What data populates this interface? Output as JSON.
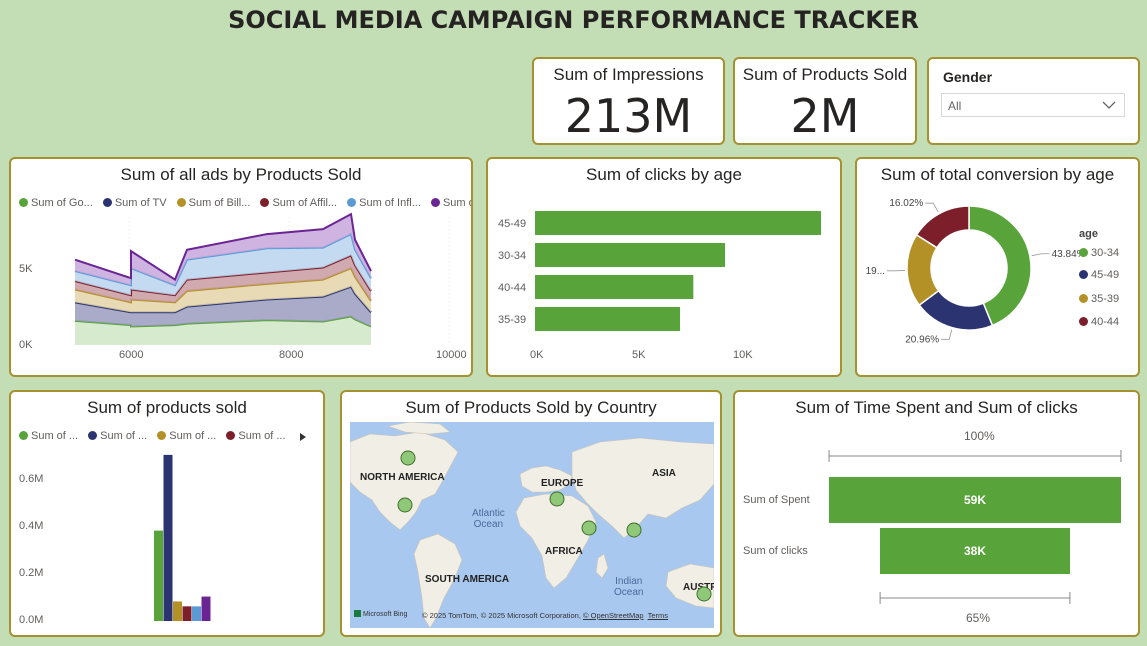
{
  "title": "SOCIAL MEDIA CAMPAIGN PERFORMANCE TRACKER",
  "kpis": [
    {
      "label": "Sum of Impressions",
      "value": "213M"
    },
    {
      "label": "Sum of Products Sold",
      "value": "2M"
    }
  ],
  "slicer": {
    "title": "Gender",
    "value": "All"
  },
  "colors": {
    "green": "#58a33a",
    "navy": "#2b3470",
    "gold": "#b39127",
    "maroon": "#7d1f2a",
    "blue": "#5b9bd5",
    "purple": "#6b2493",
    "border": "#a5912f"
  },
  "area_chart": {
    "title": "Sum of all ads by Products Sold",
    "legend": [
      "Sum of Go...",
      "Sum of TV",
      "Sum of Bill...",
      "Sum of Affil...",
      "Sum of Infl...",
      "Sum of S..."
    ],
    "x_ticks": [
      "6000",
      "8000",
      "10000"
    ],
    "y_ticks": [
      "5K",
      "0K"
    ],
    "chart_data": {
      "type": "area",
      "x": [
        5300,
        6000,
        6000,
        6550,
        6700,
        7700,
        8400,
        8750,
        8800,
        9000
      ],
      "xlim": [
        5000,
        10000
      ],
      "ylim": [
        0,
        9000
      ],
      "series": [
        {
          "values": [
            1700,
            1400,
            1300,
            1400,
            1500,
            1750,
            1650,
            2000,
            1800,
            1300
          ]
        },
        {
          "values": [
            1300,
            900,
            1000,
            900,
            1200,
            1450,
            1750,
            2100,
            1800,
            1000
          ]
        },
        {
          "values": [
            900,
            700,
            900,
            700,
            1100,
            1100,
            1200,
            1300,
            1200,
            800
          ]
        },
        {
          "values": [
            600,
            500,
            700,
            500,
            800,
            800,
            850,
            900,
            800,
            700
          ]
        },
        {
          "values": [
            700,
            700,
            1500,
            700,
            1400,
            1700,
            1400,
            1500,
            1100,
            900
          ]
        },
        {
          "values": [
            800,
            500,
            1200,
            400,
            700,
            1000,
            1300,
            1400,
            700,
            500
          ]
        }
      ]
    }
  },
  "clicks_chart": {
    "title": "Sum of clicks by age",
    "x_ticks": [
      "0K",
      "5K",
      "10K"
    ],
    "chart_data": {
      "type": "bar",
      "categories": [
        "45-49",
        "30-34",
        "40-44",
        "35-39"
      ],
      "values": [
        14000,
        9300,
        7750,
        7100
      ],
      "xlim": [
        0,
        14000
      ]
    }
  },
  "donut_chart": {
    "title": "Sum of total conversion by age",
    "legend_title": "age",
    "chart_data": {
      "type": "pie",
      "categories": [
        "30-34",
        "45-49",
        "35-39",
        "40-44"
      ],
      "values": [
        43.84,
        20.96,
        19.18,
        16.02
      ],
      "labels": [
        "43.84%",
        "20.96%",
        "19...",
        "16.02%"
      ]
    }
  },
  "products_chart": {
    "title": "Sum of products sold",
    "legend": [
      "Sum of ...",
      "Sum of ...",
      "Sum of ...",
      "Sum of ..."
    ],
    "y_ticks": [
      "0.6M",
      "0.4M",
      "0.2M",
      "0.0M"
    ],
    "chart_data": {
      "type": "bar",
      "values": [
        0.37,
        0.68,
        0.08,
        0.06,
        0.06,
        0.1
      ],
      "ylim": [
        0,
        0.7
      ]
    }
  },
  "map": {
    "title": "Sum of Products Sold by Country",
    "labels": {
      "na": "NORTH AMERICA",
      "eu": "EUROPE",
      "asia": "ASIA",
      "africa": "AFRICA",
      "sa": "SOUTH AMERICA",
      "aus": "AUSTR"
    },
    "oceans": {
      "atlantic": "Atlantic\nOcean",
      "indian": "Indian\nOcean"
    },
    "attribution": "© 2025 TomTom, © 2025 Microsoft Corporation,",
    "osm": "© OpenStreetMap",
    "terms": "Terms",
    "bing": "Microsoft Bing"
  },
  "funnel": {
    "title": "Sum of Time Spent and Sum of clicks",
    "top_pct": "100%",
    "bottom_pct": "65%",
    "chart_data": {
      "type": "bar",
      "categories": [
        "Sum of Spent",
        "Sum of clicks"
      ],
      "values": [
        59000,
        38000
      ],
      "labels": [
        "59K",
        "38K"
      ],
      "percent": [
        100,
        65
      ]
    }
  }
}
